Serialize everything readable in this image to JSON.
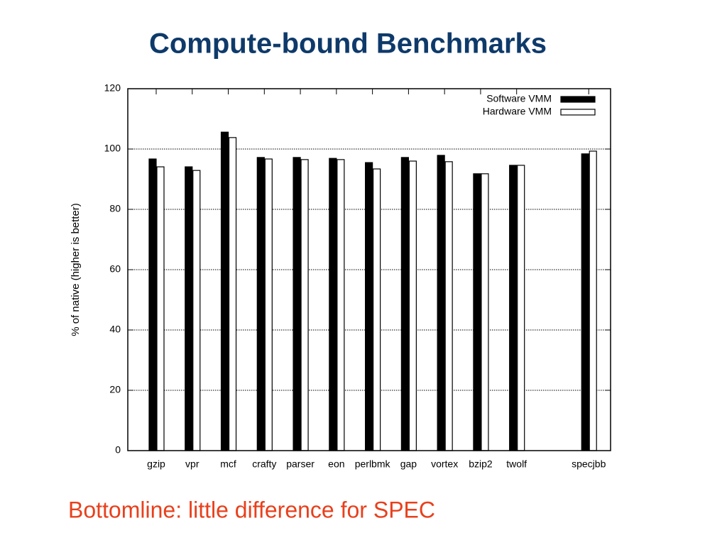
{
  "chart_data": {
    "type": "bar",
    "title": "Compute-bound Benchmarks",
    "annotation": "Bottomline:  little difference for SPEC",
    "y_label": "% of native (higher is better)",
    "categories": [
      "gzip",
      "vpr",
      "mcf",
      "crafty",
      "parser",
      "eon",
      "perlbmk",
      "gap",
      "vortex",
      "bzip2",
      "twolf",
      null,
      "specjbb"
    ],
    "series": [
      {
        "name": "Software VMM",
        "color": "#000000",
        "values": [
          96.7,
          94.1,
          105.6,
          97.2,
          97.2,
          96.9,
          95.5,
          97.2,
          97.9,
          91.8,
          94.6,
          null,
          98.4
        ]
      },
      {
        "name": "Hardware VMM",
        "color": "#ffffff",
        "values": [
          94.1,
          92.9,
          103.8,
          96.7,
          96.5,
          96.5,
          93.4,
          96.0,
          95.8,
          91.8,
          94.6,
          null,
          99.3
        ]
      }
    ],
    "ylim": [
      0,
      120
    ],
    "yticks": [
      0,
      20,
      40,
      60,
      80,
      100,
      120
    ],
    "grid": true,
    "legend": "top-right"
  }
}
